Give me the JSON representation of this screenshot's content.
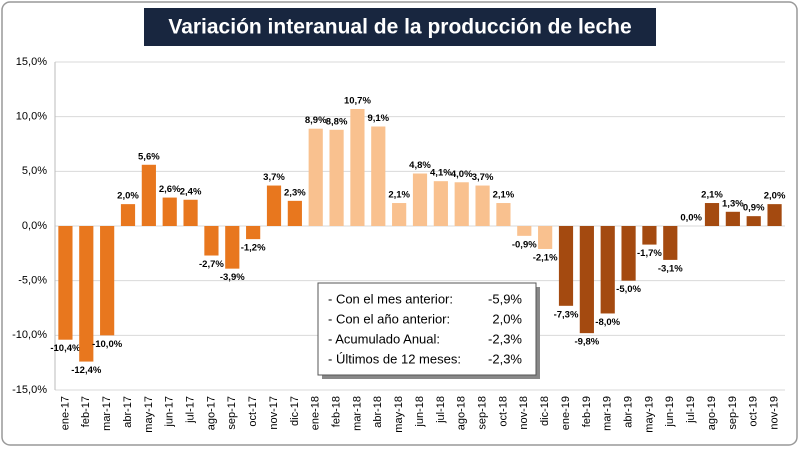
{
  "chart_data": {
    "type": "bar",
    "title": "Variación interanual de la producción de leche",
    "categories": [
      "ene-17",
      "feb-17",
      "mar-17",
      "abr-17",
      "may-17",
      "jun-17",
      "jul-17",
      "ago-17",
      "sep-17",
      "oct-17",
      "nov-17",
      "dic-17",
      "ene-18",
      "feb-18",
      "mar-18",
      "abr-18",
      "may-18",
      "jun-18",
      "jul-18",
      "ago-18",
      "sep-18",
      "oct-18",
      "nov-18",
      "dic-18",
      "ene-19",
      "feb-19",
      "mar-19",
      "abr-19",
      "may-19",
      "jun-19",
      "jul-19",
      "ago-19",
      "sep-19",
      "oct-19",
      "nov-19"
    ],
    "values": [
      -10.4,
      -12.4,
      -10.0,
      2.0,
      5.6,
      2.6,
      2.4,
      -2.7,
      -3.9,
      -1.2,
      3.7,
      2.3,
      8.9,
      8.8,
      10.7,
      9.1,
      2.1,
      4.8,
      4.1,
      4.0,
      3.7,
      2.1,
      -0.9,
      -2.1,
      -7.3,
      -9.8,
      -8.0,
      -5.0,
      -1.7,
      -3.1,
      0.0,
      2.1,
      1.3,
      0.9,
      2.0
    ],
    "value_labels": [
      "-10,4%",
      "-12,4%",
      "-10,0%",
      "2,0%",
      "5,6%",
      "2,6%",
      "2,4%",
      "-2,7%",
      "-3,9%",
      "-1,2%",
      "3,7%",
      "2,3%",
      "8,9%",
      "8,8%",
      "10,7%",
      "9,1%",
      "2,1%",
      "4,8%",
      "4,1%",
      "4,0%",
      "3,7%",
      "2,1%",
      "-0,9%",
      "-2,1%",
      "-7,3%",
      "-9,8%",
      "-8,0%",
      "-5,0%",
      "-1,7%",
      "-3,1%",
      "0,0%",
      "2,1%",
      "1,3%",
      "0,9%",
      "2,0%"
    ],
    "colors": [
      "#e8771e",
      "#e8771e",
      "#e8771e",
      "#e8771e",
      "#e8771e",
      "#e8771e",
      "#e8771e",
      "#e8771e",
      "#e8771e",
      "#e8771e",
      "#e8771e",
      "#e8771e",
      "#f9c18f",
      "#f9c18f",
      "#f9c18f",
      "#f9c18f",
      "#f9c18f",
      "#f9c18f",
      "#f9c18f",
      "#f9c18f",
      "#f9c18f",
      "#f9c18f",
      "#f9c18f",
      "#f9c18f",
      "#a44a10",
      "#a44a10",
      "#a44a10",
      "#a44a10",
      "#a44a10",
      "#a44a10",
      "#a44a10",
      "#a44a10",
      "#a44a10",
      "#a44a10",
      "#a44a10"
    ],
    "ylim": [
      -15,
      15
    ],
    "yticks": [
      {
        "value": -15,
        "label": "-15,0%"
      },
      {
        "value": -10,
        "label": "-10,0%"
      },
      {
        "value": -5,
        "label": "-5,0%"
      },
      {
        "value": 0,
        "label": "0,0%"
      },
      {
        "value": 5,
        "label": "5,0%"
      },
      {
        "value": 10,
        "label": "10,0%"
      },
      {
        "value": 15,
        "label": "15,0%"
      }
    ],
    "grid": true,
    "summary": [
      {
        "label": "- Con el mes anterior:",
        "value": "-5,9%"
      },
      {
        "label": "- Con el año anterior:",
        "value": "2,0%"
      },
      {
        "label": "- Acumulado Anual:",
        "value": "-2,3%"
      },
      {
        "label": "- Últimos de 12 meses:",
        "value": "-2,3%"
      }
    ]
  }
}
